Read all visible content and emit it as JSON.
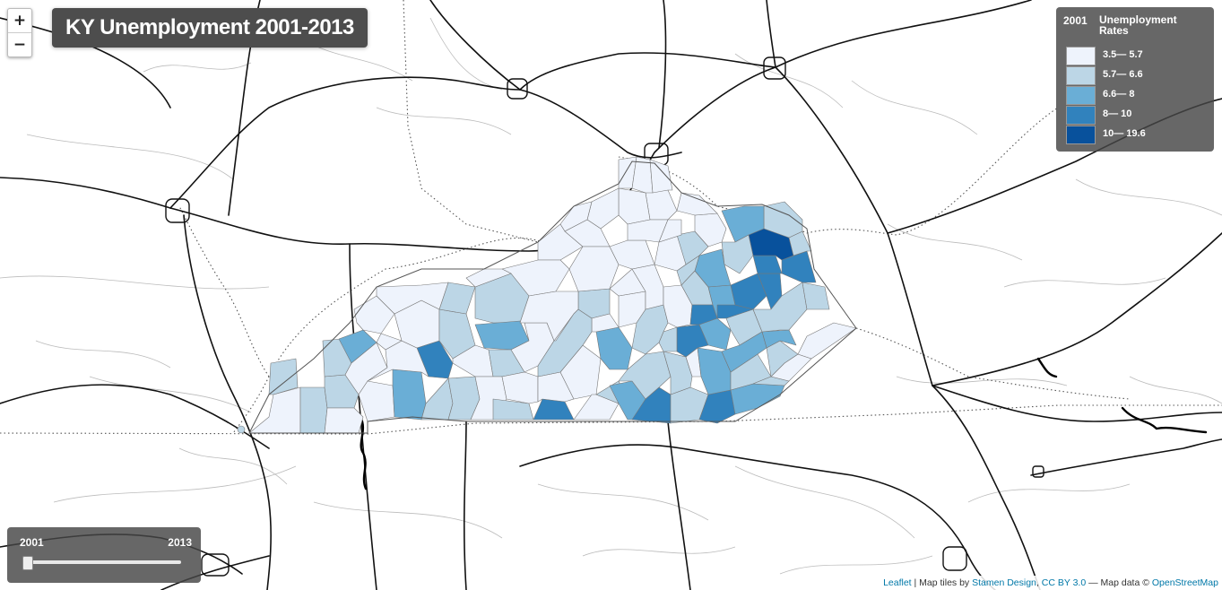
{
  "title": "KY Unemployment 2001-2013",
  "zoom": {
    "in_label": "+",
    "out_label": "−"
  },
  "legend": {
    "year": "2001",
    "heading": "Unemployment Rates",
    "classes": [
      {
        "label": "3.5— 5.7",
        "color": "#eef3fc"
      },
      {
        "label": "5.7— 6.6",
        "color": "#bcd6e6"
      },
      {
        "label": "6.6— 8",
        "color": "#6aaed6"
      },
      {
        "label": "8— 10",
        "color": "#3182bd"
      },
      {
        "label": "10— 19.6",
        "color": "#08519c"
      }
    ]
  },
  "slider": {
    "start_label": "2001",
    "end_label": "2013",
    "value": 2001,
    "min": 2001,
    "max": 2013
  },
  "attribution": {
    "leaflet": "Leaflet",
    "sep1": " | Map tiles by ",
    "stamen": "Stamen Design",
    "comma": ", ",
    "license": "CC BY 3.0",
    "sep2": " — Map data © ",
    "osm": "OpenStreetMap"
  },
  "map": {
    "state": "Kentucky",
    "county_colors": [
      "#eef3fc",
      "#bcd6e6",
      "#6aaed6",
      "#3182bd",
      "#08519c"
    ]
  }
}
